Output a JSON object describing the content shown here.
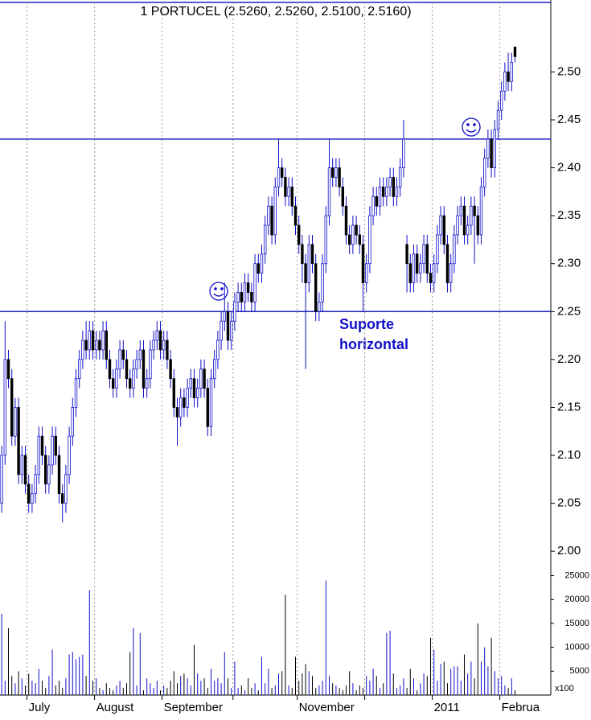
{
  "chart_data": {
    "type": "candlestick",
    "title": "1 PORTUCEL (2.5260, 2.5260, 2.5100, 2.5160)",
    "up_color": "#1010c8",
    "down_color": "#000000",
    "open": [
      2.05,
      2.1,
      2.2,
      2.18,
      2.12,
      2.15,
      2.08,
      2.1,
      2.07,
      2.05,
      2.06,
      2.08,
      2.12,
      2.1,
      2.07,
      2.09,
      2.12,
      2.1,
      2.06,
      2.05,
      2.08,
      2.12,
      2.15,
      2.18,
      2.2,
      2.22,
      2.21,
      2.23,
      2.21,
      2.22,
      2.21,
      2.23,
      2.2,
      2.18,
      2.17,
      2.19,
      2.21,
      2.2,
      2.18,
      2.17,
      2.19,
      2.2,
      2.21,
      2.17,
      2.18,
      2.21,
      2.22,
      2.23,
      2.21,
      2.22,
      2.2,
      2.18,
      2.15,
      2.14,
      2.16,
      2.15,
      2.17,
      2.18,
      2.16,
      2.17,
      2.19,
      2.17,
      2.13,
      2.18,
      2.2,
      2.22,
      2.24,
      2.25,
      2.22,
      2.24,
      2.26,
      2.27,
      2.26,
      2.28,
      2.27,
      2.26,
      2.3,
      2.29,
      2.31,
      2.34,
      2.36,
      2.33,
      2.38,
      2.4,
      2.39,
      2.37,
      2.38,
      2.36,
      2.34,
      2.32,
      2.3,
      2.28,
      2.32,
      2.3,
      2.25,
      2.26,
      2.3,
      2.35,
      2.4,
      2.39,
      2.4,
      2.38,
      2.36,
      2.33,
      2.32,
      2.34,
      2.33,
      2.32,
      2.28,
      2.3,
      2.35,
      2.37,
      2.36,
      2.38,
      2.37,
      2.38,
      2.39,
      2.37,
      2.38,
      2.4,
      2.32,
      2.3,
      2.28,
      2.31,
      2.29,
      2.3,
      2.32,
      2.29,
      2.28,
      2.3,
      2.33,
      2.35,
      2.32,
      2.28,
      2.3,
      2.33,
      2.35,
      2.36,
      2.33,
      2.34,
      2.36,
      2.35,
      2.33,
      2.38,
      2.41,
      2.43,
      2.4,
      2.44,
      2.46,
      2.48,
      2.5,
      2.49,
      2.526
    ],
    "high": [
      2.11,
      2.24,
      2.21,
      2.19,
      2.16,
      2.16,
      2.11,
      2.11,
      2.08,
      2.07,
      2.09,
      2.13,
      2.13,
      2.11,
      2.1,
      2.13,
      2.13,
      2.11,
      2.07,
      2.09,
      2.13,
      2.16,
      2.19,
      2.21,
      2.23,
      2.24,
      2.24,
      2.24,
      2.23,
      2.23,
      2.24,
      2.24,
      2.21,
      2.19,
      2.2,
      2.22,
      2.22,
      2.21,
      2.19,
      2.2,
      2.21,
      2.22,
      2.22,
      2.19,
      2.22,
      2.23,
      2.24,
      2.24,
      2.23,
      2.23,
      2.21,
      2.19,
      2.16,
      2.17,
      2.17,
      2.18,
      2.19,
      2.19,
      2.18,
      2.2,
      2.2,
      2.18,
      2.19,
      2.21,
      2.23,
      2.25,
      2.28,
      2.26,
      2.25,
      2.27,
      2.28,
      2.28,
      2.29,
      2.29,
      2.28,
      2.31,
      2.31,
      2.32,
      2.35,
      2.37,
      2.37,
      2.39,
      2.43,
      2.41,
      2.4,
      2.39,
      2.39,
      2.37,
      2.35,
      2.33,
      2.31,
      2.33,
      2.33,
      2.31,
      2.27,
      2.31,
      2.36,
      2.43,
      2.41,
      2.41,
      2.41,
      2.39,
      2.37,
      2.34,
      2.35,
      2.35,
      2.34,
      2.33,
      2.31,
      2.36,
      2.38,
      2.38,
      2.39,
      2.39,
      2.39,
      2.4,
      2.4,
      2.39,
      2.41,
      2.45,
      2.33,
      2.31,
      2.32,
      2.32,
      2.31,
      2.33,
      2.33,
      2.3,
      2.31,
      2.34,
      2.36,
      2.36,
      2.33,
      2.31,
      2.34,
      2.36,
      2.37,
      2.37,
      2.35,
      2.37,
      2.37,
      2.36,
      2.39,
      2.42,
      2.44,
      2.44,
      2.45,
      2.47,
      2.49,
      2.51,
      2.52,
      2.52,
      2.526
    ],
    "low": [
      2.04,
      2.09,
      2.17,
      2.11,
      2.11,
      2.07,
      2.07,
      2.06,
      2.04,
      2.04,
      2.05,
      2.07,
      2.09,
      2.06,
      2.06,
      2.08,
      2.09,
      2.05,
      2.03,
      2.04,
      2.07,
      2.11,
      2.14,
      2.17,
      2.19,
      2.2,
      2.2,
      2.2,
      2.2,
      2.2,
      2.2,
      2.19,
      2.17,
      2.16,
      2.16,
      2.18,
      2.19,
      2.17,
      2.16,
      2.16,
      2.18,
      2.19,
      2.16,
      2.16,
      2.17,
      2.2,
      2.21,
      2.2,
      2.2,
      2.19,
      2.17,
      2.14,
      2.11,
      2.13,
      2.14,
      2.14,
      2.16,
      2.15,
      2.15,
      2.16,
      2.16,
      2.12,
      2.12,
      2.17,
      2.19,
      2.21,
      2.23,
      2.21,
      2.21,
      2.23,
      2.25,
      2.25,
      2.25,
      2.26,
      2.25,
      2.25,
      2.28,
      2.28,
      2.3,
      2.33,
      2.32,
      2.32,
      2.37,
      2.38,
      2.36,
      2.36,
      2.35,
      2.33,
      2.31,
      2.28,
      2.19,
      2.27,
      2.29,
      2.24,
      2.24,
      2.25,
      2.29,
      2.34,
      2.38,
      2.38,
      2.37,
      2.35,
      2.32,
      2.31,
      2.31,
      2.32,
      2.31,
      2.25,
      2.27,
      2.29,
      2.34,
      2.35,
      2.35,
      2.36,
      2.36,
      2.37,
      2.36,
      2.36,
      2.37,
      2.39,
      2.27,
      2.27,
      2.27,
      2.28,
      2.28,
      2.29,
      2.28,
      2.27,
      2.27,
      2.29,
      2.32,
      2.31,
      2.27,
      2.27,
      2.29,
      2.32,
      2.34,
      2.32,
      2.32,
      2.33,
      2.3,
      2.32,
      2.32,
      2.37,
      2.4,
      2.39,
      2.39,
      2.43,
      2.45,
      2.47,
      2.48,
      2.48,
      2.51
    ],
    "close": [
      2.1,
      2.2,
      2.18,
      2.12,
      2.15,
      2.08,
      2.1,
      2.07,
      2.05,
      2.06,
      2.08,
      2.12,
      2.1,
      2.07,
      2.09,
      2.12,
      2.1,
      2.06,
      2.05,
      2.08,
      2.12,
      2.15,
      2.18,
      2.2,
      2.22,
      2.21,
      2.23,
      2.21,
      2.22,
      2.21,
      2.23,
      2.2,
      2.18,
      2.17,
      2.19,
      2.21,
      2.2,
      2.18,
      2.17,
      2.19,
      2.2,
      2.21,
      2.17,
      2.18,
      2.21,
      2.22,
      2.23,
      2.21,
      2.22,
      2.2,
      2.18,
      2.15,
      2.14,
      2.16,
      2.15,
      2.17,
      2.18,
      2.16,
      2.17,
      2.19,
      2.17,
      2.13,
      2.18,
      2.2,
      2.22,
      2.24,
      2.25,
      2.22,
      2.24,
      2.26,
      2.27,
      2.26,
      2.28,
      2.27,
      2.26,
      2.3,
      2.29,
      2.31,
      2.34,
      2.36,
      2.33,
      2.38,
      2.4,
      2.39,
      2.37,
      2.38,
      2.36,
      2.34,
      2.32,
      2.3,
      2.28,
      2.32,
      2.3,
      2.25,
      2.26,
      2.3,
      2.35,
      2.4,
      2.39,
      2.4,
      2.38,
      2.36,
      2.33,
      2.32,
      2.34,
      2.33,
      2.32,
      2.28,
      2.3,
      2.35,
      2.37,
      2.36,
      2.38,
      2.37,
      2.38,
      2.39,
      2.37,
      2.38,
      2.4,
      2.43,
      2.3,
      2.28,
      2.31,
      2.29,
      2.3,
      2.32,
      2.29,
      2.28,
      2.3,
      2.33,
      2.35,
      2.32,
      2.28,
      2.3,
      2.33,
      2.35,
      2.36,
      2.33,
      2.34,
      2.36,
      2.35,
      2.33,
      2.38,
      2.41,
      2.43,
      2.4,
      2.44,
      2.46,
      2.48,
      2.5,
      2.49,
      2.51,
      2.516
    ],
    "xlim": [
      -0.5,
      162.6
    ],
    "xticks": [
      {
        "value": 8,
        "label": "July"
      },
      {
        "value": 28,
        "label": "August"
      },
      {
        "value": 48,
        "label": "September"
      },
      {
        "value": 69,
        "label": null
      },
      {
        "value": 88,
        "label": "November"
      },
      {
        "value": 108,
        "label": null
      },
      {
        "value": 128,
        "label": "2011"
      },
      {
        "value": 148,
        "label": "Februa"
      }
    ],
    "ylim": [
      1.98,
      2.57
    ],
    "yticks": [
      {
        "value": 2.0,
        "label": "2.00"
      },
      2.05,
      {
        "value": 2.1,
        "label": "2.10"
      },
      2.15,
      {
        "value": 2.2,
        "label": "2.20"
      },
      2.25,
      {
        "value": 2.3,
        "label": "2.30"
      },
      2.35,
      {
        "value": 2.4,
        "label": "2.40"
      },
      2.45,
      {
        "value": 2.5,
        "label": "2.50"
      }
    ],
    "hlines": [
      2.43,
      2.25
    ],
    "annotation": [
      "Suporte",
      "horizontal"
    ],
    "volume": {
      "values": [
        17000,
        3000,
        14000,
        4000,
        2500,
        5000,
        3500,
        2000,
        4500,
        3000,
        2500,
        5500,
        3000,
        1500,
        4000,
        9500,
        2000,
        3000,
        1500,
        3500,
        8500,
        9000,
        7500,
        8000,
        8500,
        4000,
        22000,
        3000,
        3500,
        1500,
        1000,
        2500,
        1500,
        1000,
        2000,
        3000,
        1500,
        2500,
        9000,
        14000,
        2000,
        13000,
        1000,
        3500,
        2500,
        1500,
        3000,
        1000,
        2000,
        1500,
        3000,
        5000,
        2500,
        4000,
        4500,
        3500,
        2000,
        10500,
        4500,
        3000,
        3500,
        1500,
        5500,
        3000,
        3500,
        2500,
        9000,
        3500,
        1500,
        7000,
        1500,
        2000,
        1000,
        3500,
        1500,
        2500,
        1000,
        8000,
        2500,
        5500,
        1500,
        2000,
        4500,
        5000,
        21000,
        2000,
        1500,
        8000,
        3000,
        4500,
        6500,
        5000,
        4000,
        1500,
        2000,
        3000,
        24000,
        4000,
        2500,
        2000,
        1500,
        1000,
        2000,
        5000,
        2500,
        1000,
        2000,
        1500,
        4000,
        3000,
        5500,
        4000,
        1500,
        2500,
        13000,
        13500,
        4500,
        1500,
        2000,
        3500,
        1500,
        5500,
        3500,
        1000,
        2500,
        4500,
        4000,
        12000,
        9500,
        3000,
        6500,
        7000,
        2500,
        5500,
        6000,
        6000,
        3000,
        8500,
        4500,
        7000,
        3500,
        15000,
        7000,
        10000,
        6000,
        12000,
        5000,
        3500,
        4000,
        2000,
        1500,
        3500,
        1000
      ],
      "ylim": [
        0,
        25600
      ],
      "yticks": [
        5000,
        10000,
        15000,
        20000,
        25000
      ],
      "unit_label": "x100"
    }
  }
}
